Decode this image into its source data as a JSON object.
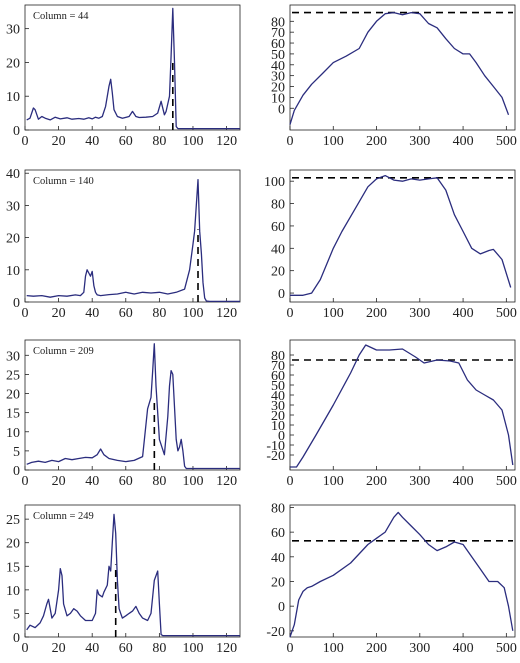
{
  "chart_data": [
    {
      "type": "line",
      "annotation": "Column =   44",
      "xlim": [
        0,
        128
      ],
      "ylim": [
        0,
        37
      ],
      "xticks": [
        0,
        20,
        40,
        60,
        80,
        100,
        120
      ],
      "yticks": [
        0,
        10,
        20,
        30
      ],
      "marker_x": 88,
      "series": [
        {
          "x": [
            1,
            3,
            5,
            6,
            8,
            10,
            12,
            15,
            18,
            21,
            25,
            28,
            32,
            35,
            38,
            40,
            42,
            44,
            46,
            48,
            50,
            51,
            52,
            53,
            55,
            58,
            62,
            64,
            66,
            68,
            72,
            76,
            79,
            81,
            83,
            84,
            86,
            87,
            88,
            89,
            90,
            91,
            94,
            100,
            110,
            120,
            128
          ],
          "y": [
            3,
            3.5,
            6.5,
            6,
            3.2,
            4,
            3.5,
            3,
            3.8,
            3.3,
            3.6,
            3.2,
            3.4,
            3.2,
            3.6,
            3.3,
            3.8,
            3.5,
            4,
            7,
            13,
            15,
            11,
            6,
            4,
            3.5,
            4,
            5.5,
            4,
            3.7,
            3.8,
            4,
            5,
            8.5,
            4.5,
            5.5,
            10,
            22,
            36,
            20,
            1,
            0.4,
            0.4,
            0.4,
            0.4,
            0.4,
            0.4
          ]
        }
      ]
    },
    {
      "type": "line",
      "xlim": [
        0,
        520
      ],
      "ylim": [
        -20,
        95
      ],
      "xticks": [
        0,
        100,
        200,
        300,
        400,
        500
      ],
      "yticks": [
        0,
        10,
        20,
        30,
        40,
        50,
        60,
        70,
        80
      ],
      "marker_y": 88,
      "series": [
        {
          "x": [
            0,
            10,
            30,
            50,
            75,
            100,
            130,
            160,
            180,
            200,
            220,
            240,
            260,
            280,
            300,
            320,
            340,
            360,
            380,
            400,
            415,
            430,
            450,
            470,
            490,
            505
          ],
          "y": [
            -15,
            -2,
            12,
            22,
            32,
            42,
            48,
            55,
            70,
            80,
            87,
            88,
            86,
            88,
            87,
            78,
            74,
            64,
            55,
            50,
            50,
            42,
            30,
            20,
            10,
            -6
          ]
        }
      ]
    },
    {
      "type": "line",
      "annotation": "Column =   140",
      "xlim": [
        0,
        128
      ],
      "ylim": [
        0,
        41
      ],
      "xticks": [
        0,
        20,
        40,
        60,
        80,
        100,
        120
      ],
      "yticks": [
        0,
        10,
        20,
        30,
        40
      ],
      "marker_x": 103,
      "series": [
        {
          "x": [
            1,
            5,
            10,
            15,
            20,
            25,
            30,
            33,
            35,
            36,
            37,
            38,
            39,
            40,
            41,
            42,
            43,
            45,
            50,
            55,
            60,
            65,
            70,
            75,
            80,
            85,
            90,
            95,
            98,
            100,
            101,
            102,
            103,
            104,
            105,
            106,
            107,
            108,
            110,
            120,
            128
          ],
          "y": [
            2,
            1.8,
            2,
            1.5,
            2,
            1.8,
            2.2,
            2,
            3,
            8,
            10,
            9,
            8,
            9.5,
            5,
            3,
            2.2,
            2,
            2.3,
            2.5,
            3,
            2.5,
            3,
            2.8,
            3,
            2.5,
            3,
            4,
            10,
            18,
            22,
            30,
            38,
            22,
            15,
            6,
            1.2,
            0.3,
            0.2,
            0.2,
            0.2
          ]
        }
      ]
    },
    {
      "type": "line",
      "xlim": [
        0,
        520
      ],
      "ylim": [
        -8,
        110
      ],
      "xticks": [
        0,
        100,
        200,
        300,
        400,
        500
      ],
      "yticks": [
        0,
        20,
        40,
        60,
        80,
        100
      ],
      "marker_y": 103,
      "series": [
        {
          "x": [
            0,
            30,
            50,
            70,
            100,
            120,
            150,
            180,
            200,
            220,
            240,
            260,
            280,
            300,
            320,
            340,
            360,
            380,
            400,
            420,
            440,
            460,
            470,
            490,
            510
          ],
          "y": [
            -2,
            -2,
            0,
            12,
            40,
            55,
            75,
            95,
            102,
            105,
            101,
            100,
            102,
            101,
            102,
            103,
            92,
            70,
            55,
            40,
            35,
            38,
            39,
            30,
            5
          ]
        }
      ]
    },
    {
      "type": "line",
      "annotation": "Column =   209",
      "xlim": [
        0,
        128
      ],
      "ylim": [
        0,
        34
      ],
      "xticks": [
        0,
        20,
        40,
        60,
        80,
        100,
        120
      ],
      "yticks": [
        0,
        5,
        10,
        15,
        20,
        25,
        30
      ],
      "marker_x": 77,
      "series": [
        {
          "x": [
            1,
            4,
            8,
            12,
            16,
            20,
            24,
            28,
            32,
            36,
            40,
            43,
            45,
            47,
            50,
            55,
            60,
            65,
            70,
            73,
            75,
            76,
            77,
            78,
            80,
            83,
            85,
            86,
            87,
            88,
            90,
            91,
            92,
            93,
            94,
            95,
            96,
            98,
            100,
            110,
            120,
            128
          ],
          "y": [
            1.5,
            2,
            2.3,
            2,
            2.5,
            2.2,
            3,
            2.7,
            3,
            3.3,
            3.2,
            4,
            5.5,
            4,
            3,
            2.5,
            2.2,
            2.5,
            3.5,
            16,
            19,
            26,
            33,
            22,
            8,
            4,
            14,
            22,
            26,
            25,
            8,
            5,
            6,
            8,
            5,
            1,
            0.4,
            0.4,
            0.4,
            0.4,
            0.4,
            0.4
          ]
        }
      ]
    },
    {
      "type": "line",
      "xlim": [
        0,
        520
      ],
      "ylim": [
        -35,
        95
      ],
      "xticks": [
        0,
        100,
        200,
        300,
        400,
        500
      ],
      "yticks": [
        -20,
        -10,
        0,
        10,
        20,
        30,
        40,
        50,
        60,
        70,
        80
      ],
      "marker_y": 75,
      "series": [
        {
          "x": [
            0,
            15,
            30,
            60,
            100,
            140,
            160,
            175,
            200,
            230,
            260,
            290,
            310,
            340,
            370,
            390,
            410,
            430,
            450,
            470,
            490,
            505,
            515
          ],
          "y": [
            -32,
            -32,
            -22,
            0,
            30,
            62,
            80,
            90,
            85,
            85,
            86,
            78,
            72,
            75,
            74,
            72,
            55,
            45,
            40,
            35,
            25,
            0,
            -30
          ]
        }
      ]
    },
    {
      "type": "line",
      "annotation": "Column =   249",
      "xlim": [
        0,
        128
      ],
      "ylim": [
        0,
        28
      ],
      "xticks": [
        0,
        20,
        40,
        60,
        80,
        100,
        120
      ],
      "yticks": [
        0,
        5,
        10,
        15,
        20,
        25
      ],
      "marker_x": 54,
      "series": [
        {
          "x": [
            1,
            3,
            6,
            9,
            11,
            13,
            14,
            16,
            18,
            20,
            21,
            22,
            23,
            25,
            27,
            29,
            31,
            33,
            36,
            40,
            42,
            43,
            44,
            46,
            47,
            49,
            50,
            51,
            52,
            53,
            54,
            55,
            56,
            57,
            58,
            60,
            62,
            64,
            66,
            68,
            70,
            73,
            75,
            77,
            79,
            80,
            81,
            82,
            90,
            100,
            110,
            120,
            128
          ],
          "y": [
            1.5,
            2.5,
            2,
            3,
            4.5,
            7,
            8,
            4,
            5,
            10,
            14.5,
            13,
            7,
            4.5,
            5,
            6,
            5.5,
            4.5,
            3.5,
            3.5,
            5,
            10,
            9,
            8.5,
            9.5,
            11,
            15,
            14,
            20,
            26,
            22,
            12,
            6,
            5,
            4,
            4.5,
            5,
            5.5,
            6.5,
            5,
            4,
            3.5,
            5,
            12,
            14,
            7,
            0.5,
            0.3,
            0.3,
            0.3,
            0.3,
            0.3,
            0.3
          ]
        }
      ]
    },
    {
      "type": "line",
      "xlim": [
        0,
        520
      ],
      "ylim": [
        -25,
        82
      ],
      "xticks": [
        0,
        100,
        200,
        300,
        400,
        500
      ],
      "yticks": [
        -20,
        0,
        20,
        40,
        60,
        80
      ],
      "marker_y": 53,
      "series": [
        {
          "x": [
            0,
            10,
            20,
            30,
            40,
            50,
            70,
            100,
            140,
            180,
            200,
            220,
            240,
            250,
            260,
            280,
            300,
            320,
            340,
            360,
            380,
            400,
            420,
            440,
            460,
            480,
            495,
            505,
            515
          ],
          "y": [
            -25,
            -15,
            5,
            12,
            15,
            16,
            20,
            25,
            35,
            50,
            55,
            60,
            72,
            76,
            72,
            65,
            58,
            50,
            45,
            48,
            52,
            50,
            40,
            30,
            20,
            20,
            15,
            0,
            -20
          ]
        }
      ]
    }
  ]
}
